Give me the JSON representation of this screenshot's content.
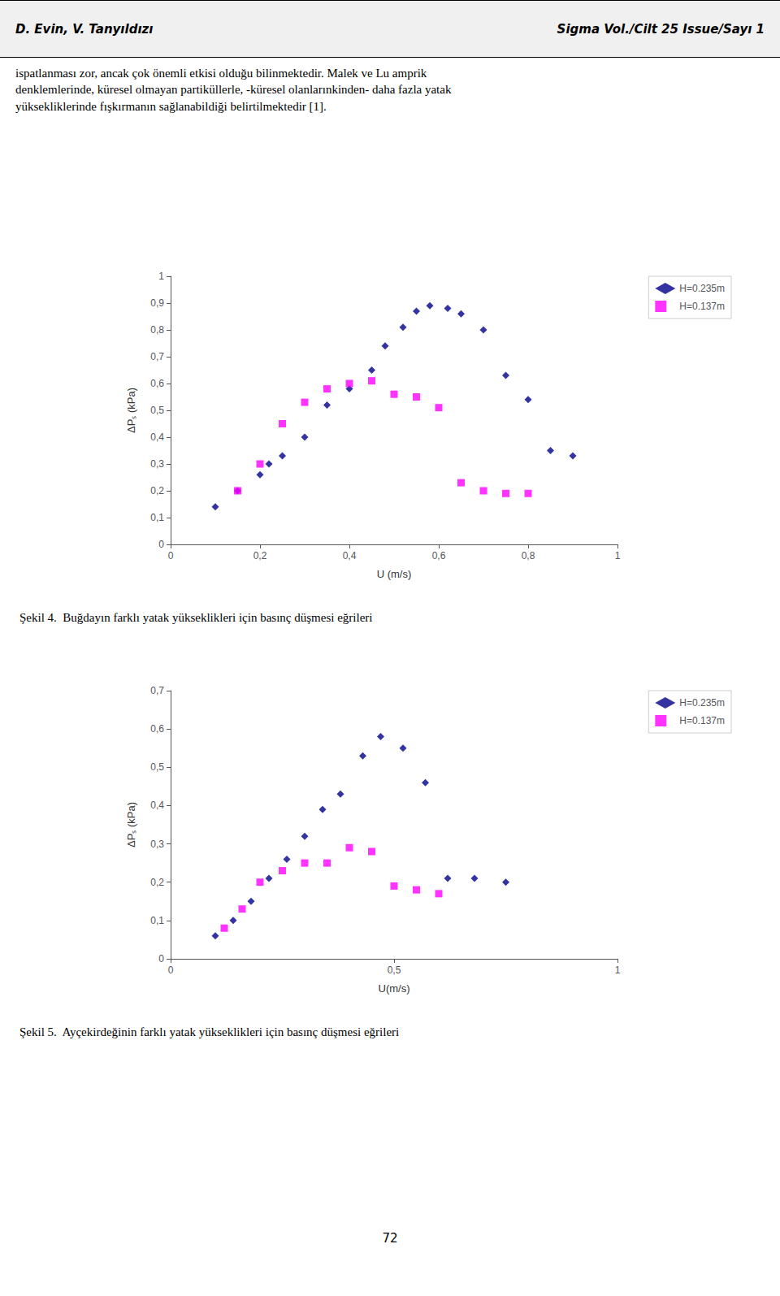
{
  "chart_data": [
    {
      "type": "scatter",
      "title": "Şekil 4.  Buğdayın farklı yatak yükseklikleri için basınç düşmesi eğrileri",
      "annotations": [
        "D. Evin, V. Tanyıldızı",
        "Sigma Vol./Cilt 25  Issue/Sayı 1",
        "ispatlanması zor, ancak çok önemli etkisi olduğu bilinmektedir. Malek ve Lu amprik\ndenklemlerinde, küresel olmayan partiküllerle, -küresel olanlarınkinden- daha fazla yatak\nyüksekliklerinde fışkırmanın sağlanabildiği belirtilmektedir [1]."
      ],
      "xlabel": "U (m/s)",
      "ylabel": "ΔPₛ (kPa)",
      "xlim": [
        0,
        1
      ],
      "ylim": [
        0,
        1
      ],
      "xticks": [
        0,
        {
          "value": 0.2,
          "label": "0,2"
        },
        {
          "value": 0.4,
          "label": "0,4"
        },
        {
          "value": 0.6,
          "label": "0,6"
        },
        {
          "value": 0.8,
          "label": "0,8"
        },
        1
      ],
      "yticks": [
        0,
        {
          "value": 0.1,
          "label": "0,1"
        },
        {
          "value": 0.2,
          "label": "0,2"
        },
        {
          "value": 0.3,
          "label": "0,3"
        },
        {
          "value": 0.4,
          "label": "0,4"
        },
        {
          "value": 0.5,
          "label": "0,5"
        },
        {
          "value": 0.6,
          "label": "0,6"
        },
        {
          "value": 0.7,
          "label": "0,7"
        },
        {
          "value": 0.8,
          "label": "0,8"
        },
        {
          "value": 0.9,
          "label": "0,9"
        },
        1
      ],
      "grid": false,
      "legend": "upper right",
      "series": [
        {
          "name": "H=0.235m",
          "color": "#00008B",
          "marker": "diamond",
          "x": [
            0.1,
            0.15,
            0.2,
            0.22,
            0.25,
            0.3,
            0.35,
            0.4,
            0.45,
            0.48,
            0.52,
            0.55,
            0.58,
            0.62,
            0.65,
            0.7,
            0.75,
            0.8,
            0.85,
            0.9
          ],
          "values": [
            0.14,
            0.2,
            0.26,
            0.3,
            0.33,
            0.4,
            0.52,
            0.58,
            0.65,
            0.74,
            0.81,
            0.87,
            0.89,
            0.88,
            0.86,
            0.8,
            0.63,
            0.54,
            0.35,
            0.33
          ]
        },
        {
          "name": "H=0.137m",
          "color": "#FF00FF",
          "marker": "square",
          "x": [
            0.15,
            0.2,
            0.25,
            0.3,
            0.35,
            0.4,
            0.45,
            0.5,
            0.55,
            0.6,
            0.65,
            0.7,
            0.75,
            0.8
          ],
          "values": [
            0.2,
            0.3,
            0.45,
            0.53,
            0.58,
            0.6,
            0.61,
            0.56,
            0.55,
            0.51,
            0.23,
            0.2,
            0.19,
            0.19
          ]
        }
      ]
    },
    {
      "type": "scatter",
      "title": "Şekil 5.  Ayçekirdeğinin farklı yatak yükseklikleri için basınç düşmesi eğrileri",
      "annotations": [
        "72"
      ],
      "xlabel": "U(m/s)",
      "ylabel": "ΔPₛ (kPa)",
      "xlim": [
        0,
        1
      ],
      "ylim": [
        0,
        0.7
      ],
      "xticks": [
        0,
        {
          "value": 0.5,
          "label": "0,5"
        },
        1
      ],
      "yticks": [
        0,
        {
          "value": 0.1,
          "label": "0,1"
        },
        {
          "value": 0.2,
          "label": "0,2"
        },
        {
          "value": 0.3,
          "label": "0,3"
        },
        {
          "value": 0.4,
          "label": "0,4"
        },
        {
          "value": 0.5,
          "label": "0,5"
        },
        {
          "value": 0.6,
          "label": "0,6"
        },
        {
          "value": 0.7,
          "label": "0,7"
        }
      ],
      "grid": false,
      "legend": "upper right",
      "series": [
        {
          "name": "H=0.235m",
          "color": "#00008B",
          "marker": "diamond",
          "x": [
            0.1,
            0.14,
            0.18,
            0.22,
            0.26,
            0.3,
            0.34,
            0.38,
            0.43,
            0.47,
            0.52,
            0.57,
            0.62,
            0.68,
            0.75
          ],
          "values": [
            0.06,
            0.1,
            0.15,
            0.21,
            0.26,
            0.32,
            0.39,
            0.43,
            0.53,
            0.58,
            0.55,
            0.46,
            0.21,
            0.21,
            0.2
          ]
        },
        {
          "name": "H=0.137m",
          "color": "#FF00FF",
          "marker": "square",
          "x": [
            0.12,
            0.16,
            0.2,
            0.25,
            0.3,
            0.35,
            0.4,
            0.45,
            0.5,
            0.55,
            0.6
          ],
          "values": [
            0.08,
            0.13,
            0.2,
            0.23,
            0.25,
            0.25,
            0.29,
            0.28,
            0.19,
            0.18,
            0.17
          ]
        }
      ]
    }
  ]
}
